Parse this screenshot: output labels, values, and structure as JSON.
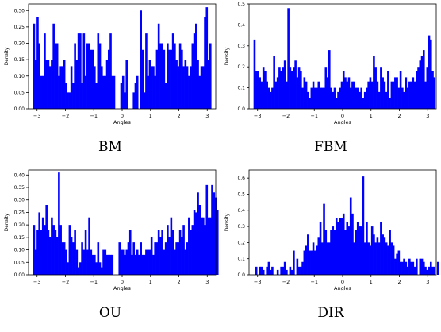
{
  "chart_data": [
    {
      "type": "bar",
      "caption": "BM",
      "xlabel": "Angles",
      "ylabel": "Density",
      "xlim": [
        -3.3,
        3.3
      ],
      "ylim": [
        0,
        0.32
      ],
      "xticks": [
        -3,
        -2,
        -1,
        0,
        1,
        2,
        3
      ],
      "yticks": [
        0.0,
        0.05,
        0.1,
        0.15,
        0.2,
        0.25,
        0.3
      ],
      "ytick_labels": [
        "0.00",
        "0.05",
        "0.10",
        "0.15",
        "0.20",
        "0.25",
        "0.30"
      ],
      "bin_start": -3.1416,
      "bin_width": 0.0628,
      "values": [
        0.26,
        0.15,
        0.28,
        0.2,
        0.1,
        0.1,
        0.23,
        0.15,
        0.15,
        0.13,
        0.15,
        0.26,
        0.2,
        0.2,
        0.1,
        0.13,
        0.13,
        0.15,
        0.08,
        0.05,
        0.05,
        0.13,
        0.08,
        0.2,
        0.15,
        0.23,
        0.23,
        0.08,
        0.23,
        0.1,
        0.2,
        0.2,
        0.18,
        0.18,
        0.13,
        0.08,
        0.23,
        0.2,
        0.13,
        0.1,
        0.1,
        0.15,
        0.18,
        0.23,
        0.1,
        0.1,
        0.0,
        0.0,
        0.0,
        0.08,
        0.1,
        0.05,
        0.15,
        0.0,
        0.0,
        0.0,
        0.05,
        0.08,
        0.1,
        0.0,
        0.3,
        0.18,
        0.05,
        0.23,
        0.1,
        0.15,
        0.13,
        0.13,
        0.1,
        0.18,
        0.26,
        0.2,
        0.2,
        0.18,
        0.08,
        0.2,
        0.18,
        0.18,
        0.23,
        0.2,
        0.15,
        0.13,
        0.2,
        0.18,
        0.13,
        0.15,
        0.13,
        0.1,
        0.13,
        0.2,
        0.23,
        0.26,
        0.15,
        0.1,
        0.13,
        0.13,
        0.28,
        0.31,
        0.15,
        0.2
      ]
    },
    {
      "type": "bar",
      "caption": "FBM",
      "xlabel": "Angles",
      "ylabel": "Density",
      "xlim": [
        -3.3,
        3.3
      ],
      "ylim": [
        0,
        0.5
      ],
      "xticks": [
        -3,
        -2,
        -1,
        0,
        1,
        2,
        3
      ],
      "yticks": [
        0.0,
        0.1,
        0.2,
        0.3,
        0.4,
        0.5
      ],
      "ytick_labels": [
        "0.0",
        "0.1",
        "0.2",
        "0.3",
        "0.4",
        "0.5"
      ],
      "bin_start": -3.1416,
      "bin_width": 0.0628,
      "values": [
        0.33,
        0.18,
        0.18,
        0.15,
        0.13,
        0.2,
        0.18,
        0.13,
        0.1,
        0.08,
        0.1,
        0.25,
        0.13,
        0.15,
        0.2,
        0.18,
        0.2,
        0.23,
        0.13,
        0.48,
        0.2,
        0.18,
        0.2,
        0.23,
        0.15,
        0.2,
        0.18,
        0.1,
        0.15,
        0.13,
        0.08,
        0.05,
        0.1,
        0.13,
        0.1,
        0.1,
        0.13,
        0.1,
        0.1,
        0.1,
        0.2,
        0.15,
        0.28,
        0.1,
        0.08,
        0.1,
        0.05,
        0.08,
        0.1,
        0.13,
        0.18,
        0.15,
        0.13,
        0.15,
        0.1,
        0.13,
        0.13,
        0.1,
        0.1,
        0.08,
        0.1,
        0.05,
        0.08,
        0.1,
        0.13,
        0.15,
        0.13,
        0.25,
        0.2,
        0.13,
        0.08,
        0.2,
        0.15,
        0.13,
        0.08,
        0.18,
        0.05,
        0.13,
        0.13,
        0.15,
        0.15,
        0.1,
        0.18,
        0.1,
        0.08,
        0.15,
        0.1,
        0.13,
        0.13,
        0.15,
        0.13,
        0.18,
        0.2,
        0.23,
        0.25,
        0.28,
        0.13,
        0.2,
        0.35,
        0.33,
        0.18,
        0.15
      ]
    },
    {
      "type": "bar",
      "caption": "OU",
      "xlabel": "Angles",
      "ylabel": "Density",
      "xlim": [
        -3.3,
        3.3
      ],
      "ylim": [
        0,
        0.42
      ],
      "xticks": [
        -3,
        -2,
        -1,
        0,
        1,
        2,
        3
      ],
      "yticks": [
        0.0,
        0.05,
        0.1,
        0.15,
        0.2,
        0.25,
        0.3,
        0.35,
        0.4
      ],
      "ytick_labels": [
        "0.00",
        "0.05",
        "0.10",
        "0.15",
        "0.20",
        "0.25",
        "0.30",
        "0.35",
        "0.40"
      ],
      "bin_start": -3.1416,
      "bin_width": 0.0628,
      "values": [
        0.2,
        0.1,
        0.18,
        0.25,
        0.18,
        0.23,
        0.2,
        0.28,
        0.18,
        0.15,
        0.23,
        0.2,
        0.18,
        0.15,
        0.41,
        0.2,
        0.13,
        0.13,
        0.1,
        0.05,
        0.2,
        0.15,
        0.13,
        0.18,
        0.1,
        0.03,
        0.05,
        0.13,
        0.1,
        0.18,
        0.1,
        0.23,
        0.1,
        0.08,
        0.08,
        0.05,
        0.13,
        0.05,
        0.03,
        0.1,
        0.1,
        0.08,
        0.08,
        0.08,
        0.08,
        0.0,
        0.0,
        0.0,
        0.13,
        0.1,
        0.1,
        0.08,
        0.1,
        0.13,
        0.18,
        0.08,
        0.13,
        0.08,
        0.1,
        0.08,
        0.13,
        0.08,
        0.08,
        0.1,
        0.1,
        0.1,
        0.15,
        0.08,
        0.13,
        0.13,
        0.18,
        0.15,
        0.18,
        0.1,
        0.13,
        0.2,
        0.15,
        0.23,
        0.18,
        0.1,
        0.13,
        0.13,
        0.18,
        0.15,
        0.2,
        0.1,
        0.13,
        0.23,
        0.18,
        0.2,
        0.26,
        0.25,
        0.33,
        0.28,
        0.23,
        0.23,
        0.2,
        0.36,
        0.23,
        0.23,
        0.36,
        0.33,
        0.31,
        0.26
      ]
    },
    {
      "type": "bar",
      "caption": "DIR",
      "xlabel": "Angles",
      "ylabel": "Density",
      "xlim": [
        -3.3,
        3.3
      ],
      "ylim": [
        0,
        0.65
      ],
      "xticks": [
        -3,
        -2,
        -1,
        0,
        1,
        2,
        3
      ],
      "yticks": [
        0.0,
        0.1,
        0.2,
        0.3,
        0.4,
        0.5,
        0.6
      ],
      "ytick_labels": [
        "0.0",
        "0.1",
        "0.2",
        "0.3",
        "0.4",
        "0.5",
        "0.6"
      ],
      "bin_start": -3.1416,
      "bin_width": 0.0628,
      "values": [
        0.0,
        0.05,
        0.0,
        0.05,
        0.05,
        0.03,
        0.0,
        0.05,
        0.08,
        0.03,
        0.05,
        0.0,
        0.0,
        0.03,
        0.0,
        0.05,
        0.05,
        0.08,
        0.03,
        0.0,
        0.05,
        0.03,
        0.15,
        0.0,
        0.1,
        0.05,
        0.05,
        0.08,
        0.15,
        0.18,
        0.25,
        0.15,
        0.15,
        0.2,
        0.15,
        0.18,
        0.23,
        0.33,
        0.2,
        0.44,
        0.28,
        0.2,
        0.2,
        0.28,
        0.3,
        0.28,
        0.35,
        0.33,
        0.35,
        0.35,
        0.38,
        0.28,
        0.33,
        0.3,
        0.48,
        0.38,
        0.2,
        0.28,
        0.33,
        0.3,
        0.3,
        0.61,
        0.2,
        0.33,
        0.2,
        0.18,
        0.3,
        0.25,
        0.2,
        0.23,
        0.2,
        0.33,
        0.25,
        0.23,
        0.2,
        0.18,
        0.28,
        0.2,
        0.18,
        0.1,
        0.13,
        0.15,
        0.08,
        0.08,
        0.1,
        0.08,
        0.05,
        0.1,
        0.08,
        0.08,
        0.05,
        0.1,
        0.0,
        0.1,
        0.1,
        0.08,
        0.05,
        0.03,
        0.05,
        0.08,
        0.05,
        0.05,
        0.0,
        0.08
      ]
    }
  ]
}
